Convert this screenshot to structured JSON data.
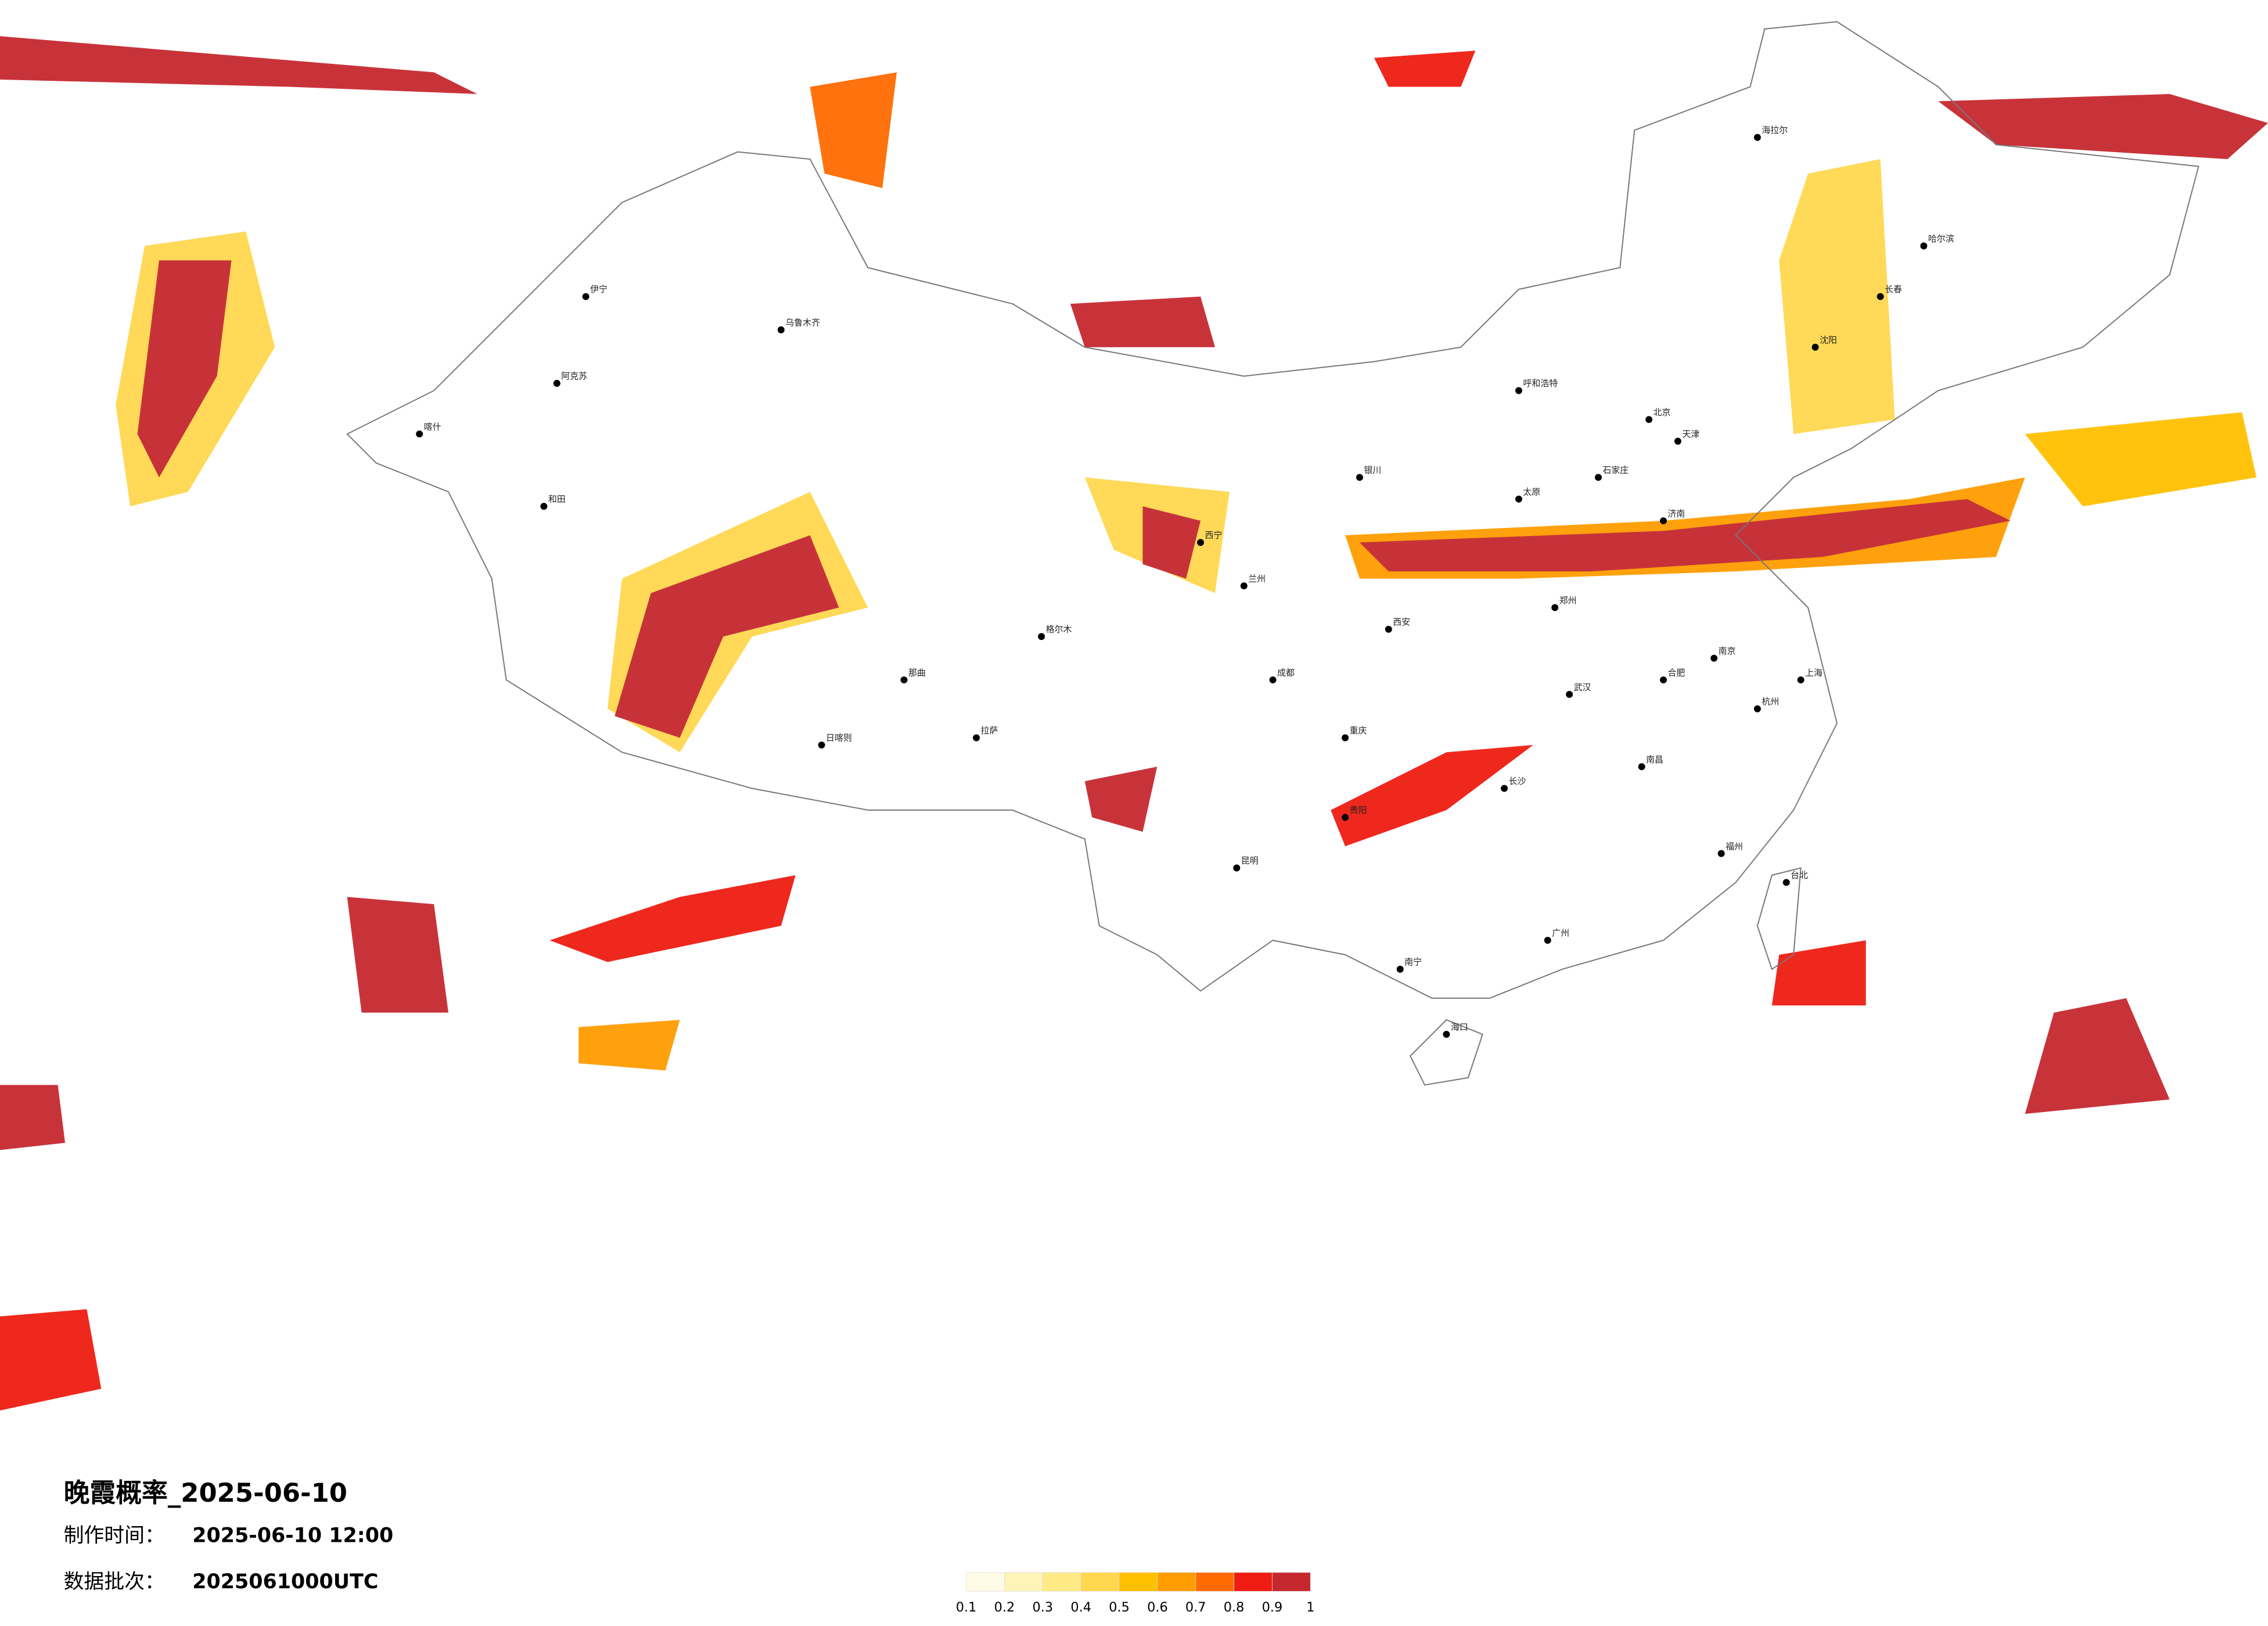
{
  "header": {
    "title": "晚霞概率_2025-06-10",
    "made_label": "制作时间：",
    "made_time": "2025-06-10 12:00",
    "batch_label": "数据批次：",
    "batch": "2025061000UTC"
  },
  "colorbar": {
    "ticks": [
      0.1,
      0.2,
      0.3,
      0.4,
      0.5,
      0.6,
      0.7,
      0.8,
      0.9,
      1
    ],
    "colors": [
      "#fffbe6",
      "#fff4b8",
      "#ffea86",
      "#ffd84f",
      "#ffc000",
      "#ff9c00",
      "#ff6a00",
      "#ee1c12",
      "#c5282f"
    ]
  },
  "cities": [
    "伊宁",
    "乌鲁木齐",
    "阿克苏",
    "和田",
    "喀什",
    "拉萨",
    "日喀则",
    "那曲",
    "格尔木",
    "西宁",
    "兰州",
    "成都",
    "重庆",
    "昆明",
    "贵阳",
    "南宁",
    "广州",
    "长沙",
    "武汉",
    "郑州",
    "西安",
    "太原",
    "石家庄",
    "北京",
    "天津",
    "济南",
    "南京",
    "上海",
    "杭州",
    "福州",
    "南昌",
    "合肥",
    "呼和浩特",
    "银川",
    "沈阳",
    "长春",
    "哈尔滨",
    "海口",
    "台北",
    "海拉尔"
  ]
}
